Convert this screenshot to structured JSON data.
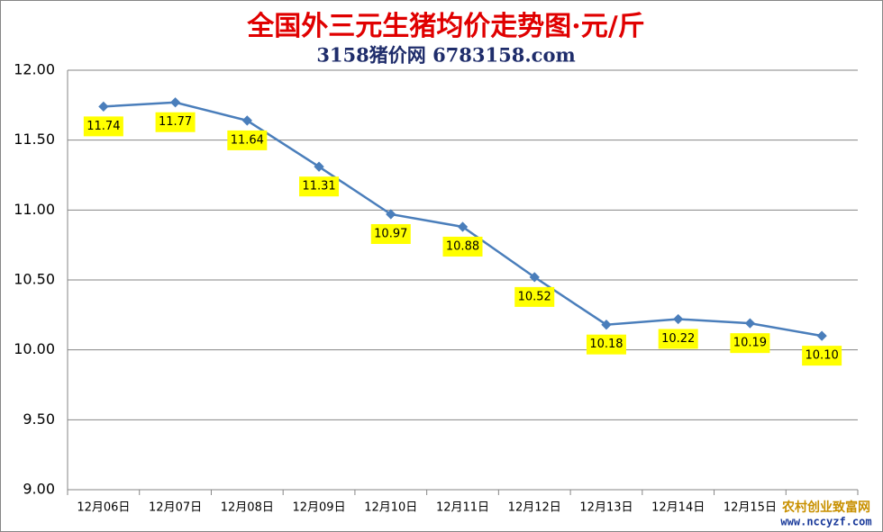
{
  "chart_data": {
    "type": "line",
    "title": "全国外三元生猪均价走势图·元/斤",
    "subtitle": "3158猪价网 6783158.com",
    "categories": [
      "12月06日",
      "12月07日",
      "12月08日",
      "12月09日",
      "12月10日",
      "12月11日",
      "12月12日",
      "12月13日",
      "12月14日",
      "12月15日",
      null
    ],
    "series": [
      {
        "name": "全国外三元生猪均价",
        "color": "#4a7ebb",
        "values": [
          11.74,
          11.77,
          11.64,
          11.31,
          10.97,
          10.88,
          10.52,
          10.18,
          10.22,
          10.19,
          10.1
        ],
        "value_labels": [
          "11.74",
          "11.77",
          "11.64",
          "11.31",
          "10.97",
          "10.88",
          "10.52",
          "10.18",
          "10.22",
          "10.19",
          "10.10"
        ]
      }
    ],
    "ylim": [
      9,
      12
    ],
    "yticks": [
      {
        "value": 9,
        "label": "9.00"
      },
      {
        "value": 9.5,
        "label": "9.50"
      },
      {
        "value": 10,
        "label": "10.00"
      },
      {
        "value": 10.5,
        "label": "10.50"
      },
      {
        "value": 11,
        "label": "11.00"
      },
      {
        "value": 11.5,
        "label": "11.50"
      },
      {
        "value": 12,
        "label": "12.00"
      }
    ],
    "grid": true,
    "watermark": [
      "农村创业致富网",
      "www.nccyzf.com"
    ]
  }
}
